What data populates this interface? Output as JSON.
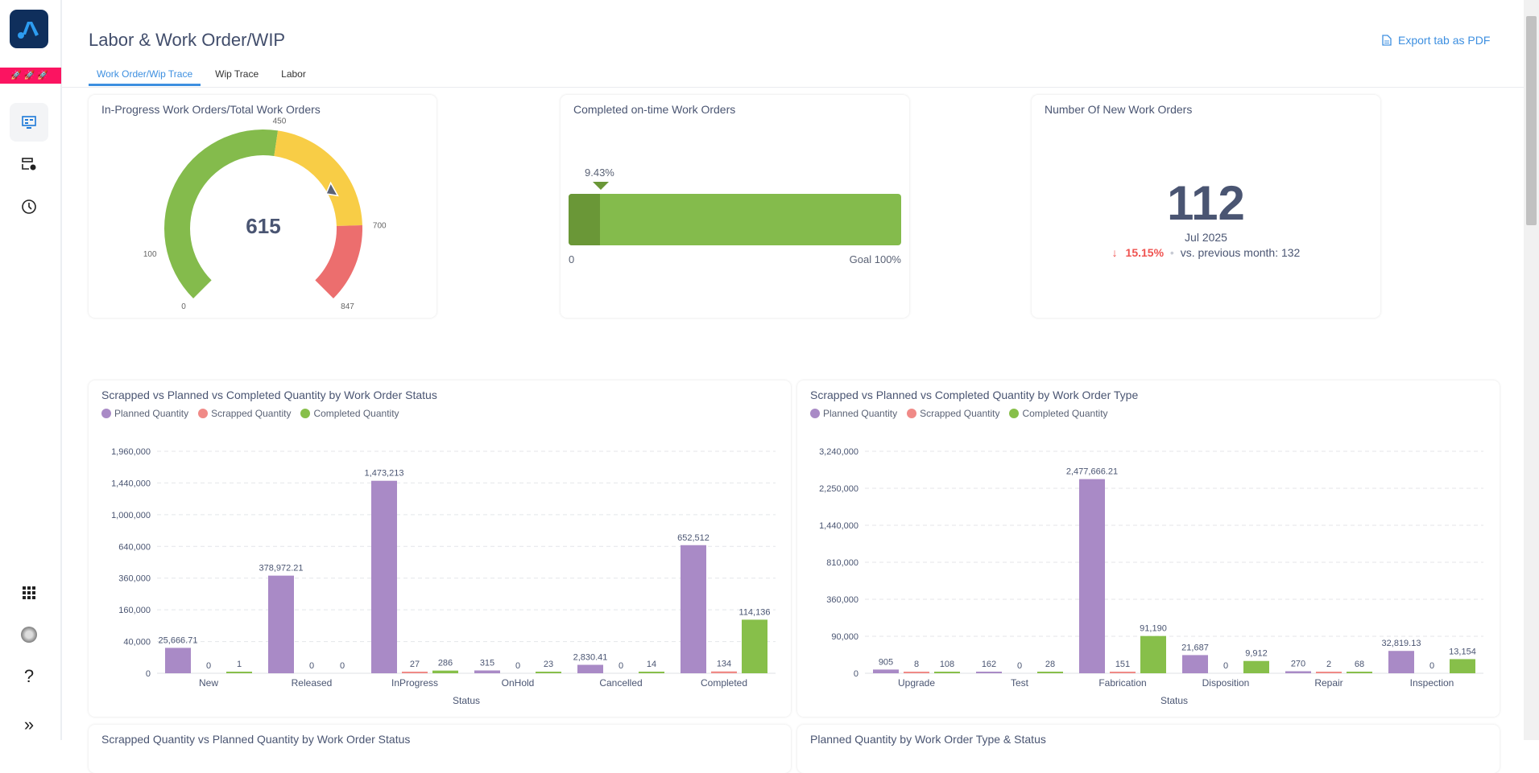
{
  "header": {
    "title": "Labor & Work Order/WIP",
    "export_label": "Export tab as PDF"
  },
  "tabs": [
    {
      "label": "Work Order/Wip Trace",
      "active": true
    },
    {
      "label": "Wip Trace"
    },
    {
      "label": "Labor"
    }
  ],
  "sidebar": {
    "strip_text": "🚀🚀🚀",
    "icons": [
      "dashboard-monitor-icon",
      "workflow-icon",
      "clock-icon",
      "apps-grid-icon",
      "user-avatar",
      "help-icon",
      "expand-icon"
    ]
  },
  "gauge": {
    "title": "In-Progress Work Orders/Total Work Orders",
    "value": "615",
    "min": 0,
    "max": 847,
    "value_num": 615,
    "bands": [
      {
        "to": 450,
        "color": "#84bb4c"
      },
      {
        "to": 700,
        "color": "#f8cd46"
      },
      {
        "to": 847,
        "color": "#ec6e6e"
      }
    ],
    "tick_labels": [
      "0",
      "100",
      "450",
      "700",
      "847"
    ],
    "ticks": [
      0,
      100,
      450,
      700,
      847
    ]
  },
  "ontime": {
    "title": "Completed on-time Work Orders",
    "value_label": "9.43%",
    "value": 9.43,
    "min_label": "0",
    "goal_label": "Goal 100%",
    "colors": {
      "value": "#6a9737",
      "goal": "#84bb4c"
    }
  },
  "new_orders": {
    "title": "Number Of New Work Orders",
    "value": "112",
    "period": "Jul 2025",
    "change": "15.15%",
    "direction": "down",
    "comparison": "vs. previous month: 132",
    "change_color": "#ef5350"
  },
  "chart_data": [
    {
      "type": "bar",
      "title": "Scrapped vs Planned vs Completed Quantity by Work Order Status",
      "xlabel": "Status",
      "ylabel": "",
      "yscale": "sqrt",
      "ylim": [
        0,
        1960000
      ],
      "yticks": [
        "0",
        "40,000",
        "160,000",
        "360,000",
        "640,000",
        "1,000,000",
        "1,440,000",
        "1,960,000"
      ],
      "ytick_values": [
        0,
        40000,
        160000,
        360000,
        640000,
        1000000,
        1440000,
        1960000
      ],
      "categories": [
        "New",
        "Released",
        "InProgress",
        "OnHold",
        "Cancelled",
        "Completed"
      ],
      "legend": "top-left",
      "grid": true,
      "series": [
        {
          "name": "Planned Quantity",
          "color": "#a98ac6",
          "values": [
            25666.71,
            378972.21,
            1473213,
            315,
            2830.41,
            652512
          ],
          "labels": [
            "25,666.71",
            "378,972.21",
            "1,473,213",
            "315",
            "2,830.41",
            "652,512"
          ]
        },
        {
          "name": "Scrapped Quantity",
          "color": "#f08a87",
          "values": [
            0,
            0,
            27,
            0,
            0,
            134
          ],
          "labels": [
            "0",
            "0",
            "27",
            "0",
            "0",
            "134"
          ]
        },
        {
          "name": "Completed Quantity",
          "color": "#87bf4a",
          "values": [
            1,
            0,
            286,
            23,
            14,
            114136
          ],
          "labels": [
            "1",
            "0",
            "286",
            "23",
            "14",
            "114,136"
          ]
        }
      ]
    },
    {
      "type": "bar",
      "title": "Scrapped vs Planned vs Completed Quantity by Work Order Type",
      "xlabel": "Status",
      "ylabel": "",
      "yscale": "sqrt",
      "ylim": [
        0,
        3240000
      ],
      "yticks": [
        "0",
        "90,000",
        "360,000",
        "810,000",
        "1,440,000",
        "2,250,000",
        "3,240,000"
      ],
      "ytick_values": [
        0,
        90000,
        360000,
        810000,
        1440000,
        2250000,
        3240000
      ],
      "categories": [
        "Upgrade",
        "Test",
        "Fabrication",
        "Disposition",
        "Repair",
        "Inspection"
      ],
      "legend": "top-left",
      "grid": true,
      "series": [
        {
          "name": "Planned Quantity",
          "color": "#a98ac6",
          "values": [
            905,
            162,
            2477666.21,
            21687,
            270,
            32819.13
          ],
          "labels": [
            "905",
            "162",
            "2,477,666.21",
            "21,687",
            "270",
            "32,819.13"
          ]
        },
        {
          "name": "Scrapped Quantity",
          "color": "#f08a87",
          "values": [
            8,
            0,
            151,
            0,
            2,
            0
          ],
          "labels": [
            "8",
            "0",
            "151",
            "0",
            "2",
            "0"
          ]
        },
        {
          "name": "Completed Quantity",
          "color": "#87bf4a",
          "values": [
            108,
            28,
            91190,
            9912,
            68,
            13154
          ],
          "labels": [
            "108",
            "28",
            "91,190",
            "9,912",
            "68",
            "13,154"
          ]
        }
      ]
    }
  ],
  "lower_cards": [
    {
      "title": "Scrapped Quantity vs Planned Quantity by Work Order Status"
    },
    {
      "title": "Planned Quantity by Work Order Type & Status"
    }
  ]
}
